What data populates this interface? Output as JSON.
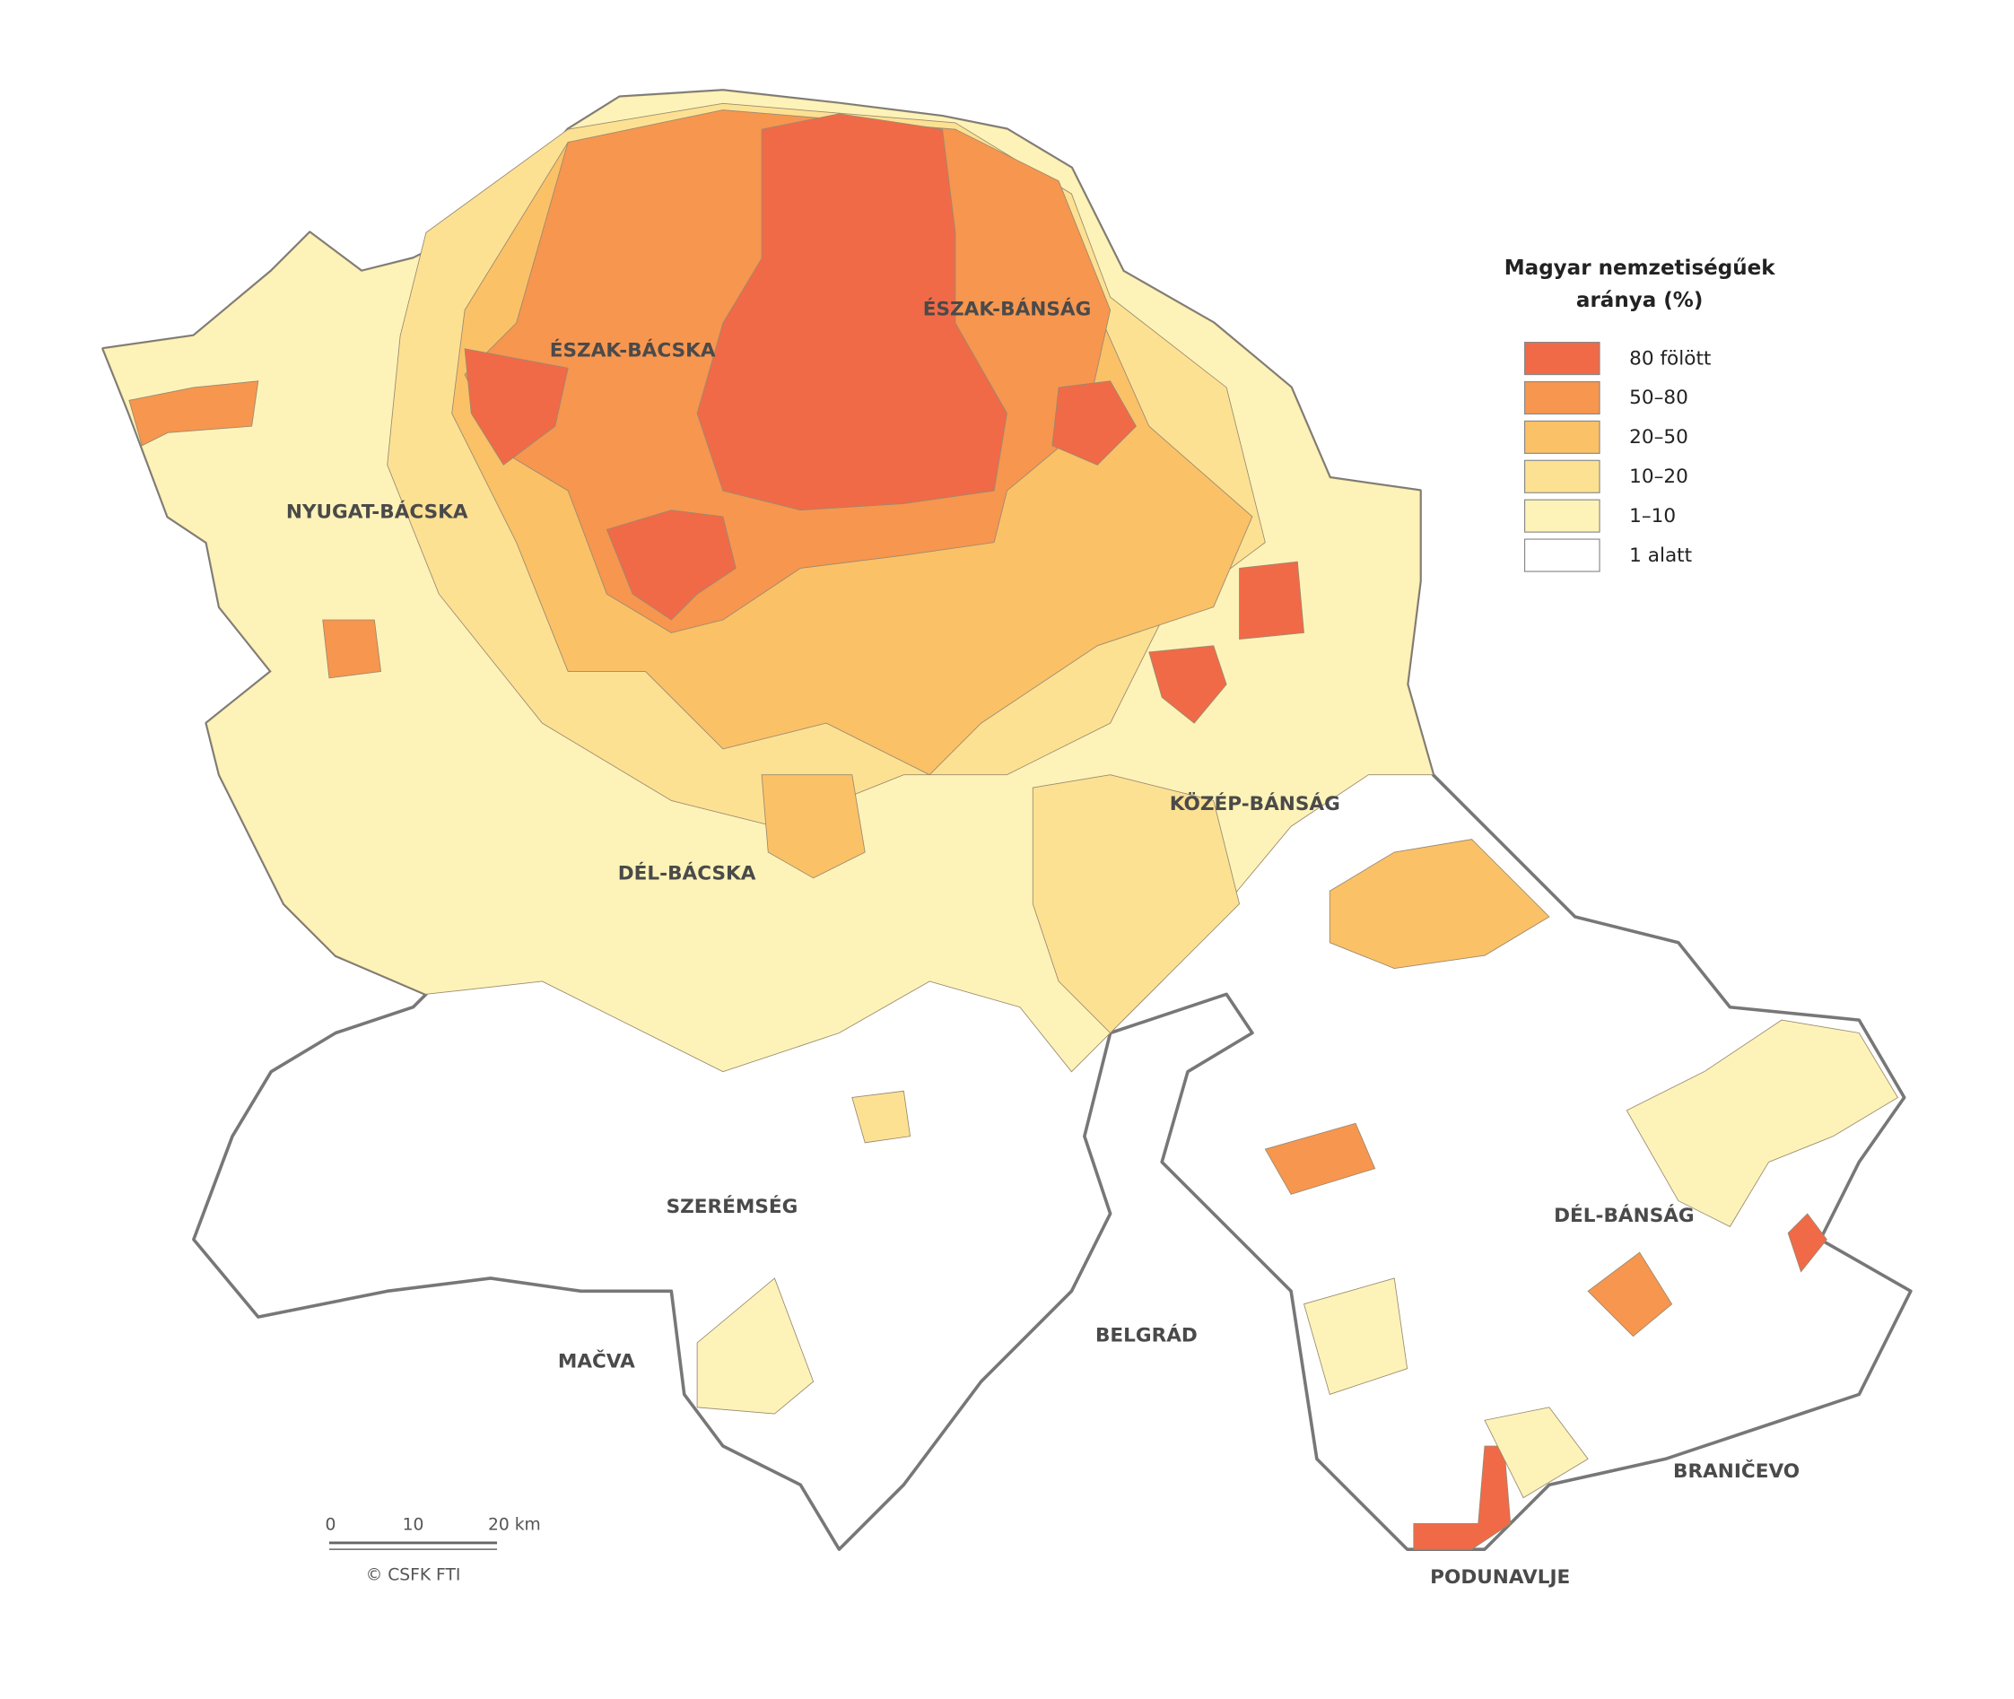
{
  "legend": {
    "title": [
      "Magyar nemzetiségűek",
      "aránya (%)"
    ],
    "items": [
      {
        "label": "80 fölött",
        "color": "#f06a48"
      },
      {
        "label": "50–80",
        "color": "#f7964f"
      },
      {
        "label": "20–50",
        "color": "#fbc167"
      },
      {
        "label": "10–20",
        "color": "#fde193"
      },
      {
        "label": "1–10",
        "color": "#fdf3b8"
      },
      {
        "label": "1 alatt",
        "color": "#ffffff"
      }
    ]
  },
  "regions": [
    {
      "label": "ÉSZAK-BÁCSKA"
    },
    {
      "label": "ÉSZAK-BÁNSÁG"
    },
    {
      "label": "NYUGAT-BÁCSKA"
    },
    {
      "label": "KÖZÉP-BÁNSÁG"
    },
    {
      "label": "DÉL-BÁCSKA"
    },
    {
      "label": "SZERÉMSÉG"
    },
    {
      "label": "DÉL-BÁNSÁG"
    },
    {
      "label": "MAČVA"
    },
    {
      "label": "BELGRÁD"
    },
    {
      "label": "BRANIČEVO"
    },
    {
      "label": "PODUNAVLJE"
    }
  ],
  "scale_bar": {
    "ticks": [
      "0",
      "10",
      "20 km"
    ]
  },
  "credit": "© CSFK FTI"
}
